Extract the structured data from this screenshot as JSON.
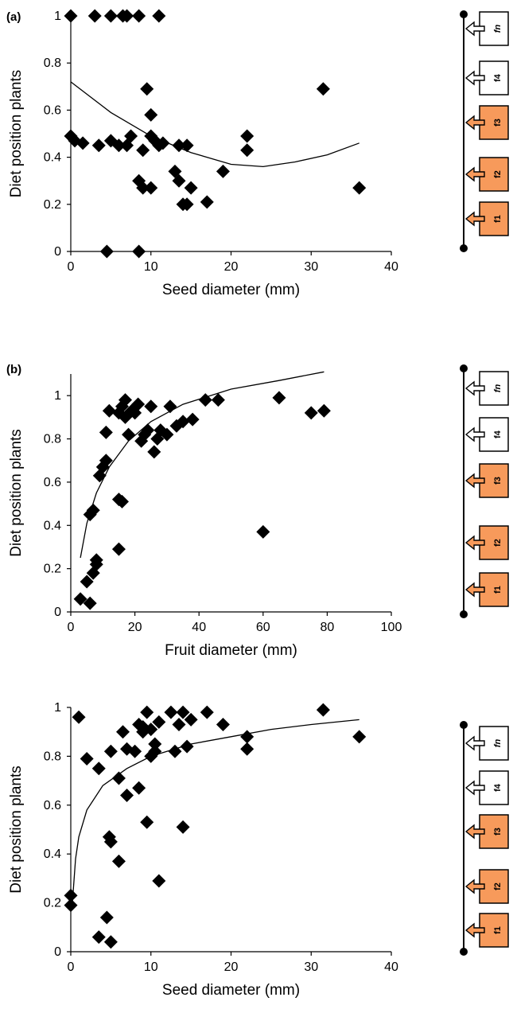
{
  "colors": {
    "marker": "#000000",
    "curve": "#000000",
    "filled_box": "#F79A5B",
    "empty_box": "#FFFFFF"
  },
  "icons": [
    "fruit-box-icon",
    "arrow-icon",
    "axis-node-icon"
  ],
  "chart_data": [
    {
      "type": "scatter",
      "panel": "(a)",
      "xlabel": "Seed diameter (mm)",
      "ylabel": "Diet position plants",
      "xlim": [
        0,
        40
      ],
      "ylim": [
        0,
        1
      ],
      "x_ticks": [
        "0",
        "10",
        "20",
        "30",
        "40"
      ],
      "y_ticks": [
        "0",
        "0.2",
        "0.4",
        "0.6",
        "0.8",
        "1"
      ],
      "grid": false,
      "trendline": "polynomial",
      "points": [
        [
          0.0,
          1.0
        ],
        [
          3.0,
          1.0
        ],
        [
          5.0,
          1.0
        ],
        [
          6.5,
          1.0
        ],
        [
          7.0,
          1.0
        ],
        [
          8.5,
          1.0
        ],
        [
          11.0,
          1.0
        ],
        [
          0.0,
          0.49
        ],
        [
          0.5,
          0.47
        ],
        [
          1.5,
          0.46
        ],
        [
          3.5,
          0.45
        ],
        [
          5.0,
          0.47
        ],
        [
          6.0,
          0.45
        ],
        [
          7.0,
          0.45
        ],
        [
          7.5,
          0.49
        ],
        [
          9.0,
          0.43
        ],
        [
          10.0,
          0.49
        ],
        [
          10.5,
          0.47
        ],
        [
          11.0,
          0.45
        ],
        [
          11.5,
          0.46
        ],
        [
          13.5,
          0.45
        ],
        [
          14.5,
          0.45
        ],
        [
          22.0,
          0.49
        ],
        [
          22.0,
          0.43
        ],
        [
          9.5,
          0.69
        ],
        [
          10.0,
          0.58
        ],
        [
          31.5,
          0.69
        ],
        [
          8.5,
          0.3
        ],
        [
          9.0,
          0.27
        ],
        [
          10.0,
          0.27
        ],
        [
          13.0,
          0.34
        ],
        [
          13.5,
          0.3
        ],
        [
          14.0,
          0.2
        ],
        [
          14.5,
          0.2
        ],
        [
          15.0,
          0.27
        ],
        [
          17.0,
          0.21
        ],
        [
          19.0,
          0.34
        ],
        [
          36.0,
          0.27
        ],
        [
          4.5,
          0.0
        ],
        [
          8.5,
          0.0
        ]
      ],
      "curve": [
        [
          0,
          0.72
        ],
        [
          5,
          0.59
        ],
        [
          10,
          0.49
        ],
        [
          15,
          0.42
        ],
        [
          20,
          0.37
        ],
        [
          24,
          0.36
        ],
        [
          28,
          0.38
        ],
        [
          32,
          0.41
        ],
        [
          36,
          0.46
        ]
      ],
      "food_chain": [
        "fn",
        "f4",
        "f3",
        "f2",
        "f1"
      ],
      "highlighted": [
        "f3",
        "f2",
        "f1"
      ]
    },
    {
      "type": "scatter",
      "panel": "(b)",
      "xlabel": "Fruit diameter (mm)",
      "ylabel": "Diet position plants",
      "xlim": [
        0,
        100
      ],
      "ylim": [
        0,
        1.1
      ],
      "x_ticks": [
        "0",
        "20",
        "40",
        "60",
        "80",
        "100"
      ],
      "y_ticks": [
        "0",
        "0.2",
        "0.4",
        "0.6",
        "0.8",
        "1"
      ],
      "grid": false,
      "trendline": "logarithmic",
      "points": [
        [
          3,
          0.06
        ],
        [
          5,
          0.14
        ],
        [
          6,
          0.04
        ],
        [
          7,
          0.18
        ],
        [
          8,
          0.24
        ],
        [
          8,
          0.22
        ],
        [
          6,
          0.45
        ],
        [
          7,
          0.47
        ],
        [
          9,
          0.63
        ],
        [
          10,
          0.67
        ],
        [
          11,
          0.7
        ],
        [
          11,
          0.83
        ],
        [
          12,
          0.93
        ],
        [
          15,
          0.29
        ],
        [
          15,
          0.52
        ],
        [
          16,
          0.51
        ],
        [
          15,
          0.92
        ],
        [
          16,
          0.95
        ],
        [
          17,
          0.98
        ],
        [
          17,
          0.9
        ],
        [
          18,
          0.82
        ],
        [
          19,
          0.93
        ],
        [
          20,
          0.92
        ],
        [
          21,
          0.96
        ],
        [
          22,
          0.79
        ],
        [
          23,
          0.82
        ],
        [
          24,
          0.84
        ],
        [
          25,
          0.95
        ],
        [
          26,
          0.74
        ],
        [
          27,
          0.8
        ],
        [
          28,
          0.84
        ],
        [
          30,
          0.82
        ],
        [
          31,
          0.95
        ],
        [
          33,
          0.86
        ],
        [
          35,
          0.88
        ],
        [
          38,
          0.89
        ],
        [
          42,
          0.98
        ],
        [
          46,
          0.98
        ],
        [
          60,
          0.37
        ],
        [
          65,
          0.99
        ],
        [
          75,
          0.92
        ],
        [
          79,
          0.93
        ]
      ],
      "curve": [
        [
          3,
          0.25
        ],
        [
          5,
          0.41
        ],
        [
          8,
          0.55
        ],
        [
          12,
          0.67
        ],
        [
          18,
          0.79
        ],
        [
          25,
          0.88
        ],
        [
          35,
          0.96
        ],
        [
          50,
          1.03
        ],
        [
          65,
          1.07
        ],
        [
          79,
          1.11
        ]
      ],
      "food_chain": [
        "fn",
        "f4",
        "f3",
        "f2",
        "f1"
      ],
      "highlighted": [
        "f3",
        "f2",
        "f1"
      ]
    },
    {
      "type": "scatter",
      "panel": "",
      "xlabel": "Seed diameter (mm)",
      "ylabel": "Diet position plants",
      "xlim": [
        0,
        40
      ],
      "ylim": [
        0,
        1
      ],
      "x_ticks": [
        "0",
        "10",
        "20",
        "30",
        "40"
      ],
      "y_ticks": [
        "0",
        "0.2",
        "0.4",
        "0.6",
        "0.8",
        "1"
      ],
      "grid": false,
      "trendline": "logarithmic",
      "points": [
        [
          0.0,
          0.23
        ],
        [
          0.0,
          0.19
        ],
        [
          1.0,
          0.96
        ],
        [
          2.0,
          0.79
        ],
        [
          3.5,
          0.75
        ],
        [
          3.5,
          0.06
        ],
        [
          4.5,
          0.14
        ],
        [
          5.0,
          0.04
        ],
        [
          4.8,
          0.47
        ],
        [
          5.0,
          0.45
        ],
        [
          5.0,
          0.82
        ],
        [
          6.0,
          0.37
        ],
        [
          6.0,
          0.71
        ],
        [
          6.5,
          0.9
        ],
        [
          7.0,
          0.83
        ],
        [
          7.0,
          0.64
        ],
        [
          8.0,
          0.82
        ],
        [
          8.5,
          0.93
        ],
        [
          8.5,
          0.67
        ],
        [
          9.0,
          0.9
        ],
        [
          9.0,
          0.92
        ],
        [
          9.5,
          0.53
        ],
        [
          9.5,
          0.98
        ],
        [
          10.0,
          0.91
        ],
        [
          10.0,
          0.8
        ],
        [
          10.5,
          0.82
        ],
        [
          10.5,
          0.85
        ],
        [
          11.0,
          0.29
        ],
        [
          11.0,
          0.94
        ],
        [
          12.5,
          0.98
        ],
        [
          13.0,
          0.82
        ],
        [
          13.5,
          0.93
        ],
        [
          14.0,
          0.98
        ],
        [
          14.0,
          0.51
        ],
        [
          14.5,
          0.84
        ],
        [
          15.0,
          0.95
        ],
        [
          17.0,
          0.98
        ],
        [
          19.0,
          0.93
        ],
        [
          22.0,
          0.88
        ],
        [
          22.0,
          0.83
        ],
        [
          31.5,
          0.99
        ],
        [
          36.0,
          0.88
        ]
      ],
      "curve": [
        [
          0.2,
          0.2
        ],
        [
          0.6,
          0.38
        ],
        [
          1,
          0.47
        ],
        [
          2,
          0.58
        ],
        [
          4,
          0.68
        ],
        [
          7,
          0.75
        ],
        [
          10,
          0.8
        ],
        [
          15,
          0.85
        ],
        [
          20,
          0.88
        ],
        [
          25,
          0.91
        ],
        [
          30,
          0.93
        ],
        [
          36,
          0.95
        ]
      ],
      "food_chain": [
        "fn",
        "f4",
        "f3",
        "f2",
        "f1"
      ],
      "highlighted": [
        "f3",
        "f2",
        "f1"
      ]
    }
  ]
}
